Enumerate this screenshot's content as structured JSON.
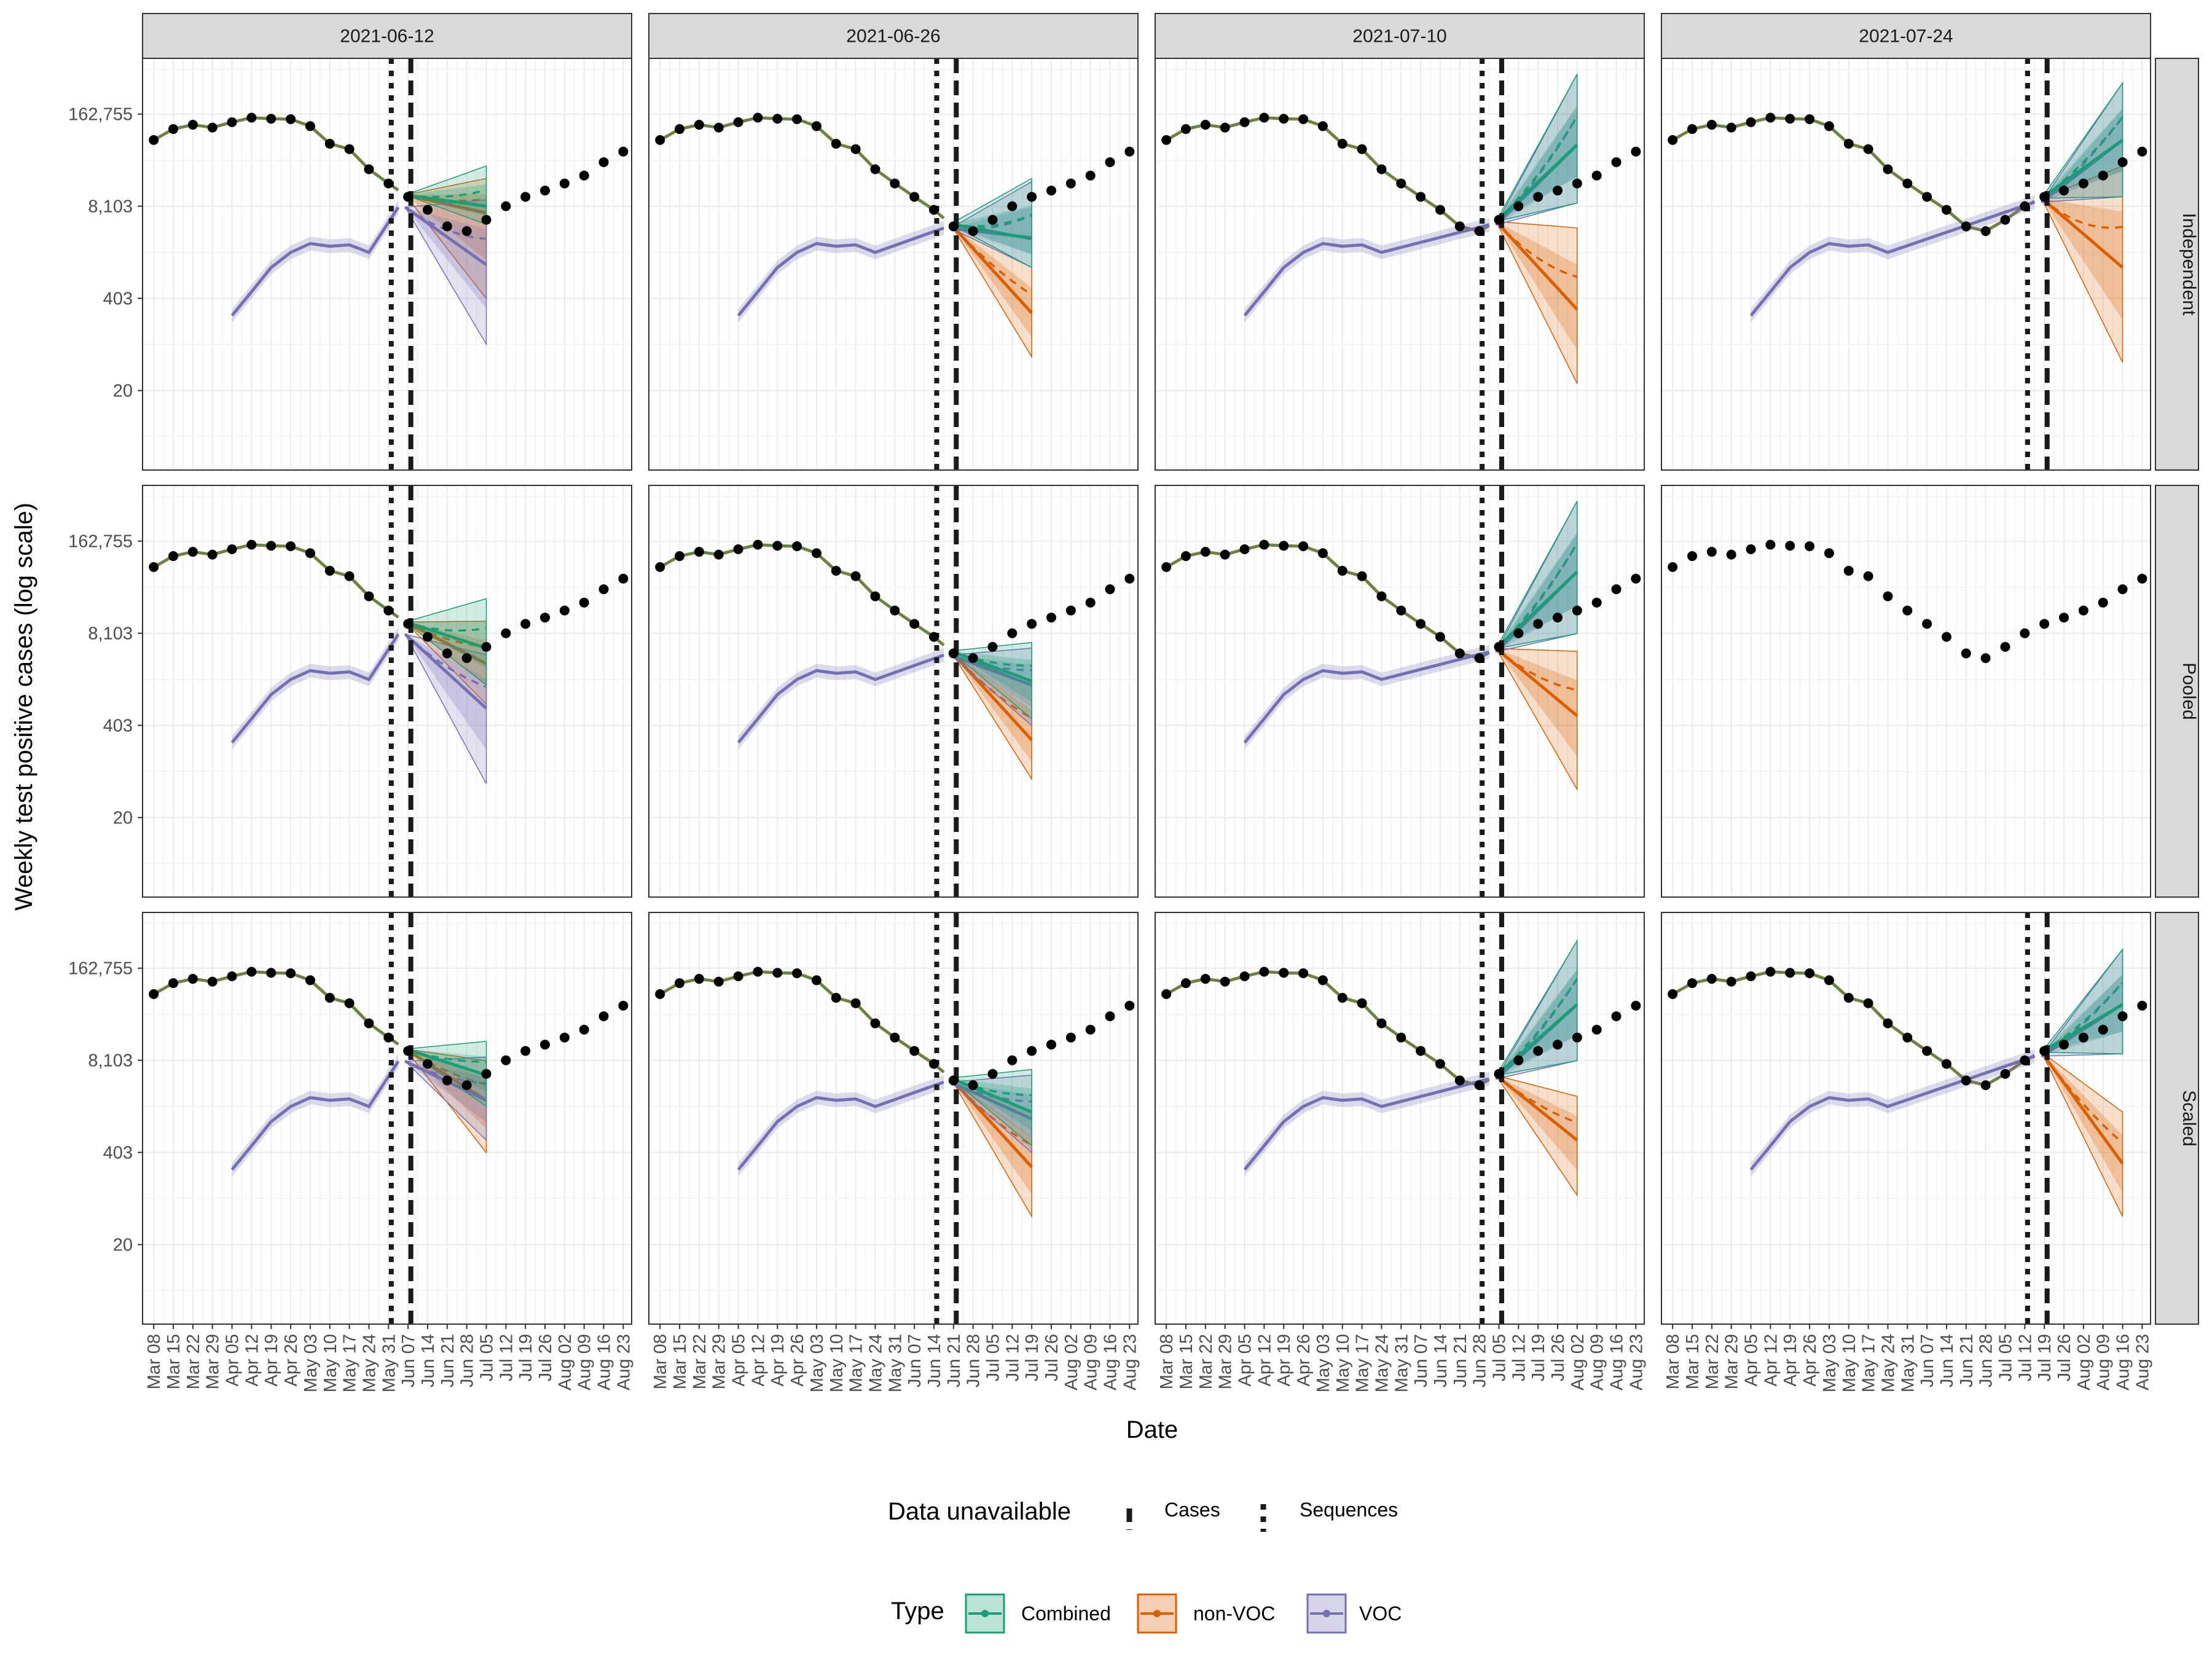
{
  "chart_data": {
    "type": "line",
    "y_scale": "log",
    "ylabel": "Weekly test positive cases (log scale)",
    "xlabel": "Date",
    "y_ticks": [
      20,
      403,
      8103,
      162755
    ],
    "y_tick_labels": [
      "20",
      "403",
      "8,103",
      "162,755"
    ],
    "x_ticks": [
      "Mar 08",
      "Mar 15",
      "Mar 22",
      "Mar 29",
      "Apr 05",
      "Apr 12",
      "Apr 19",
      "Apr 26",
      "May 03",
      "May 10",
      "May 17",
      "May 24",
      "May 31",
      "Jun 07",
      "Jun 14",
      "Jun 21",
      "Jun 28",
      "Jul 05",
      "Jul 12",
      "Jul 19",
      "Jul 26",
      "Aug 02",
      "Aug 09",
      "Aug 16",
      "Aug 23"
    ],
    "column_facets": [
      "2021-06-12",
      "2021-06-26",
      "2021-07-10",
      "2021-07-24"
    ],
    "row_facets": [
      "Independent",
      "Pooled",
      "Scaled"
    ],
    "legend": {
      "unavailable": {
        "title": "Data unavailable",
        "items": [
          {
            "label": "Cases",
            "linetype": "dashed"
          },
          {
            "label": "Sequences",
            "linetype": "dotted"
          }
        ]
      },
      "type": {
        "title": "Type",
        "items": [
          {
            "label": "Combined",
            "color": "#1b9e77"
          },
          {
            "label": "non-VOC",
            "color": "#d95f02"
          },
          {
            "label": "VOC",
            "color": "#7570b3"
          }
        ]
      }
    },
    "colors": {
      "Combined": "#1b9e77",
      "non-VOC": "#d95f02",
      "VOC": "#7570b3",
      "observed": "#000000"
    },
    "observed_cases": [
      [
        "2021-03-08",
        70000
      ],
      [
        "2021-03-15",
        100000
      ],
      [
        "2021-03-22",
        115000
      ],
      [
        "2021-03-29",
        105000
      ],
      [
        "2021-04-05",
        125000
      ],
      [
        "2021-04-12",
        145000
      ],
      [
        "2021-04-19",
        140000
      ],
      [
        "2021-04-26",
        138000
      ],
      [
        "2021-05-03",
        110000
      ],
      [
        "2021-05-10",
        62000
      ],
      [
        "2021-05-17",
        52000
      ],
      [
        "2021-05-24",
        27000
      ],
      [
        "2021-05-31",
        17000
      ],
      [
        "2021-06-07",
        11000
      ],
      [
        "2021-06-14",
        7200
      ],
      [
        "2021-06-21",
        4200
      ],
      [
        "2021-06-28",
        3600
      ],
      [
        "2021-07-05",
        5200
      ],
      [
        "2021-07-12",
        8100
      ],
      [
        "2021-07-19",
        11000
      ],
      [
        "2021-07-26",
        13500
      ],
      [
        "2021-08-02",
        17000
      ],
      [
        "2021-08-09",
        22000
      ],
      [
        "2021-08-16",
        34000
      ],
      [
        "2021-08-23",
        48000
      ]
    ],
    "voc_observed": [
      [
        "2021-04-05",
        230
      ],
      [
        "2021-04-12",
        500
      ],
      [
        "2021-04-19",
        1100
      ],
      [
        "2021-04-26",
        1800
      ],
      [
        "2021-05-03",
        2400
      ],
      [
        "2021-05-10",
        2200
      ],
      [
        "2021-05-17",
        2300
      ],
      [
        "2021-05-24",
        1800
      ]
    ],
    "panels": [
      {
        "row": "Independent",
        "col": "2021-06-12",
        "seq_cutoff": "2021-06-01",
        "case_cutoff": "2021-06-08",
        "forecast_end": "2021-07-05",
        "Combined": {
          "end": 8100,
          "end_low": 4500,
          "end_high": 30000
        },
        "non-VOC": {
          "end": 6500,
          "end_low": 400,
          "end_high": 20000
        },
        "VOC": {
          "end": 1200,
          "end_low": 90,
          "end_high": 10000
        }
      },
      {
        "row": "Independent",
        "col": "2021-06-26",
        "seq_cutoff": "2021-06-15",
        "case_cutoff": "2021-06-22",
        "forecast_end": "2021-07-19",
        "Combined": {
          "end": 2800,
          "end_low": 1100,
          "end_high": 20000
        },
        "non-VOC": {
          "end": 250,
          "end_low": 60,
          "end_high": 1100
        },
        "VOC": {
          "end": 2900,
          "end_low": 1100,
          "end_high": 18000
        }
      },
      {
        "row": "Independent",
        "col": "2021-07-10",
        "seq_cutoff": "2021-06-29",
        "case_cutoff": "2021-07-06",
        "forecast_end": "2021-08-02",
        "Combined": {
          "end": 60000,
          "end_low": 9000,
          "end_high": 600000
        },
        "non-VOC": {
          "end": 280,
          "end_low": 25,
          "end_high": 4000
        },
        "VOC": {
          "end": 60000,
          "end_low": 9000,
          "end_high": 600000
        }
      },
      {
        "row": "Independent",
        "col": "2021-07-24",
        "seq_cutoff": "2021-07-13",
        "case_cutoff": "2021-07-20",
        "forecast_end": "2021-08-16",
        "Combined": {
          "end": 70000,
          "end_low": 11000,
          "end_high": 450000
        },
        "non-VOC": {
          "end": 1100,
          "end_low": 50,
          "end_high": 30000
        },
        "VOC": {
          "end": 70000,
          "end_low": 11000,
          "end_high": 450000
        }
      },
      {
        "row": "Pooled",
        "col": "2021-06-12",
        "seq_cutoff": "2021-06-01",
        "case_cutoff": "2021-06-08",
        "forecast_end": "2021-07-05",
        "Combined": {
          "end": 5000,
          "end_low": 1500,
          "end_high": 25000
        },
        "non-VOC": {
          "end": 3000,
          "end_low": 800,
          "end_high": 12000
        },
        "VOC": {
          "end": 700,
          "end_low": 60,
          "end_high": 4000
        }
      },
      {
        "row": "Pooled",
        "col": "2021-06-26",
        "seq_cutoff": "2021-06-15",
        "case_cutoff": "2021-06-22",
        "forecast_end": "2021-07-19",
        "Combined": {
          "end": 1700,
          "end_low": 500,
          "end_high": 6000
        },
        "non-VOC": {
          "end": 250,
          "end_low": 70,
          "end_high": 1500
        },
        "VOC": {
          "end": 1500,
          "end_low": 400,
          "end_high": 5000
        }
      },
      {
        "row": "Pooled",
        "col": "2021-07-10",
        "seq_cutoff": "2021-06-29",
        "case_cutoff": "2021-07-06",
        "forecast_end": "2021-08-02",
        "Combined": {
          "end": 60000,
          "end_low": 8000,
          "end_high": 600000
        },
        "non-VOC": {
          "end": 550,
          "end_low": 50,
          "end_high": 4500
        },
        "VOC": {
          "end": 60000,
          "end_low": 8000,
          "end_high": 600000
        }
      },
      {
        "row": "Pooled",
        "col": "2021-07-24",
        "observed_only": true
      },
      {
        "row": "Scaled",
        "col": "2021-06-12",
        "seq_cutoff": "2021-06-01",
        "case_cutoff": "2021-06-08",
        "forecast_end": "2021-07-05",
        "Combined": {
          "end": 5000,
          "end_low": 1800,
          "end_high": 15000
        },
        "non-VOC": {
          "end": 2200,
          "end_low": 400,
          "end_high": 8000
        },
        "VOC": {
          "end": 2200,
          "end_low": 600,
          "end_high": 9000
        }
      },
      {
        "row": "Scaled",
        "col": "2021-06-26",
        "seq_cutoff": "2021-06-15",
        "case_cutoff": "2021-06-22",
        "forecast_end": "2021-07-19",
        "Combined": {
          "end": 1500,
          "end_low": 500,
          "end_high": 6000
        },
        "non-VOC": {
          "end": 250,
          "end_low": 50,
          "end_high": 1500
        },
        "VOC": {
          "end": 1200,
          "end_low": 400,
          "end_high": 5000
        }
      },
      {
        "row": "Scaled",
        "col": "2021-07-10",
        "seq_cutoff": "2021-06-29",
        "case_cutoff": "2021-07-06",
        "forecast_end": "2021-08-02",
        "Combined": {
          "end": 50000,
          "end_low": 8000,
          "end_high": 400000
        },
        "non-VOC": {
          "end": 600,
          "end_low": 100,
          "end_high": 2500
        },
        "VOC": {
          "end": 50000,
          "end_low": 8000,
          "end_high": 400000
        }
      },
      {
        "row": "Scaled",
        "col": "2021-07-24",
        "seq_cutoff": "2021-07-13",
        "case_cutoff": "2021-07-20",
        "forecast_end": "2021-08-16",
        "Combined": {
          "end": 50000,
          "end_low": 10000,
          "end_high": 300000
        },
        "non-VOC": {
          "end": 280,
          "end_low": 50,
          "end_high": 1500
        },
        "VOC": {
          "end": 50000,
          "end_low": 10000,
          "end_high": 300000
        }
      }
    ]
  }
}
